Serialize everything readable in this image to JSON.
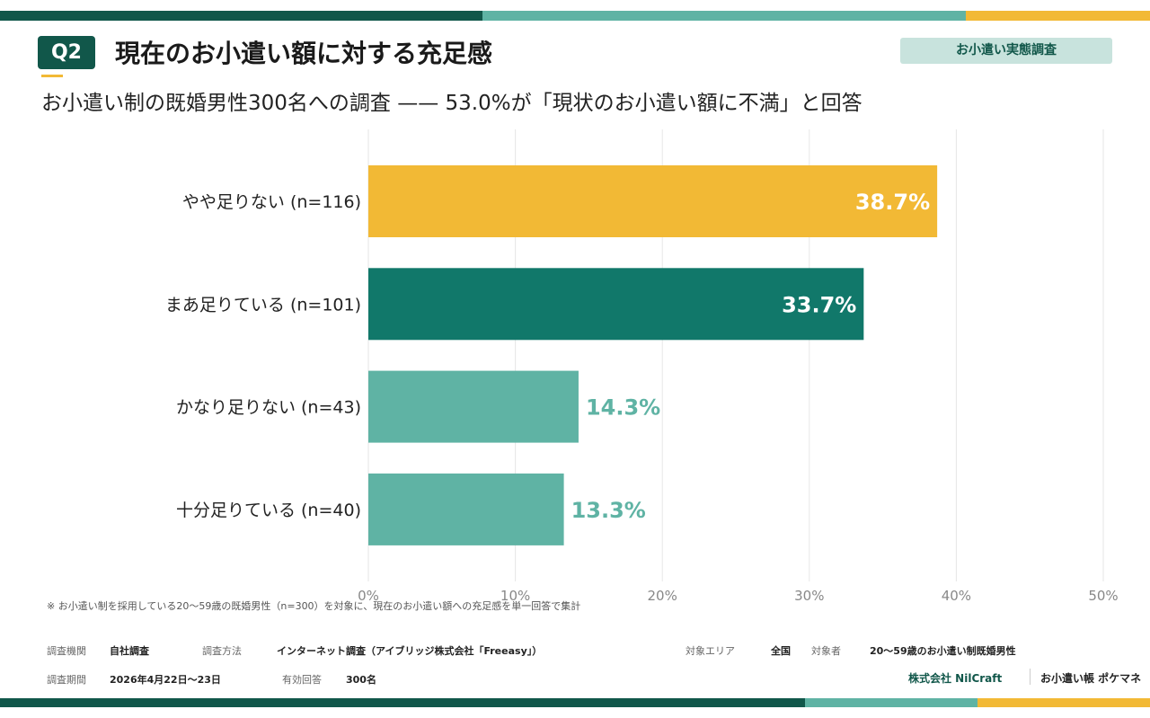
{
  "header": {
    "badge": "Q2",
    "title": "現在のお小遣い額に対する充足感",
    "tag": "お小遣い実態調査",
    "subtitle": "お小遣い制の既婚男性300名への調査 —— 53.0%が「現状のお小遣い額に不満」と回答"
  },
  "chart_data": {
    "type": "bar",
    "orientation": "horizontal",
    "categories": [
      "やや足りない (n=116)",
      "まあ足りている (n=101)",
      "かなり足りない (n=43)",
      "十分足りている (n=40)"
    ],
    "values": [
      38.7,
      33.7,
      14.3,
      13.3
    ],
    "value_labels": [
      "38.7%",
      "33.7%",
      "14.3%",
      "13.3%"
    ],
    "bar_colors": [
      "#f2b935",
      "#11786a",
      "#5fb3a4",
      "#5fb3a4"
    ],
    "label_colors": [
      "#ffffff",
      "#ffffff",
      "#5fb3a4",
      "#5fb3a4"
    ],
    "label_inside": [
      true,
      true,
      false,
      false
    ],
    "xlim": [
      0,
      50
    ],
    "ticks": [
      0,
      10,
      20,
      30,
      40,
      50
    ],
    "tick_labels": [
      "0%",
      "10%",
      "20%",
      "30%",
      "40%",
      "50%"
    ],
    "grid": true,
    "title": "",
    "xlabel": "",
    "ylabel": ""
  },
  "note": "※ お小遣い制を採用している20〜59歳の既婚男性（n=300）を対象に、現在のお小遣い額への充足感を単一回答で集計",
  "meta": {
    "org_label": "調査機関",
    "org_value": "自社調査",
    "method_label": "調査方法",
    "method_value": "インターネット調査（アイブリッジ株式会社「Freeasy」）",
    "area_label": "対象エリア",
    "area_value": "全国",
    "target_label": "対象者",
    "target_value": "20〜59歳のお小遣い制既婚男性",
    "period_label": "調査期間",
    "period_value": "2026年4月22日〜23日",
    "valid_label": "有効回答",
    "valid_value": "300名"
  },
  "footer": {
    "company": "株式会社 NilCraft",
    "app": "お小遣い帳 ポケマネ"
  }
}
